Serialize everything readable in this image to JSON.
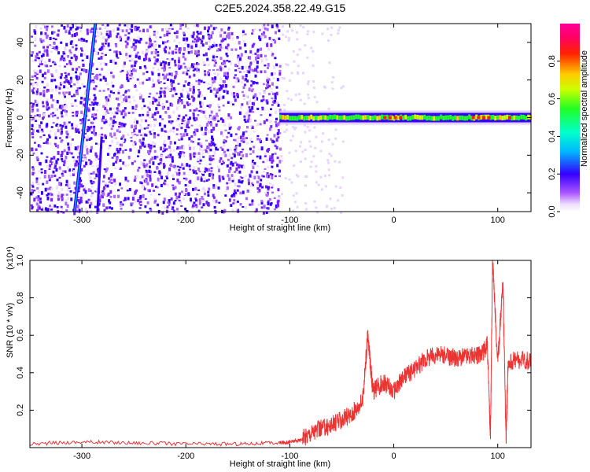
{
  "figure": {
    "title": "C2E5.2024.358.22.49.G15"
  },
  "chart_data": [
    {
      "type": "heatmap",
      "title": "C2E5.2024.358.22.49.G15",
      "xlabel": "Height of straight line (km)",
      "ylabel": "Frequency (Hz)",
      "xlim": [
        -350,
        132
      ],
      "ylim": [
        -50,
        50
      ],
      "x_ticks": [
        "-300",
        "-200",
        "-100",
        "0",
        "100"
      ],
      "x_tick_values": [
        -300,
        -200,
        -100,
        0,
        100
      ],
      "y_ticks": [
        "-40",
        "-20",
        "0",
        "20",
        "40"
      ],
      "y_tick_values": [
        -40,
        -20,
        0,
        20,
        40
      ],
      "colorbar": {
        "label": "Normalized spectral amplitude",
        "range": [
          0,
          1
        ],
        "ticks": [
          "0.0",
          "0.2",
          "0.4",
          "0.6",
          "0.8"
        ],
        "tick_values": [
          0.0,
          0.2,
          0.4,
          0.6,
          0.8
        ],
        "colormap": "rainbow (white-purple-blue-cyan-green-yellow-red-magenta)"
      },
      "features": {
        "broadband_noise_region_x": [
          -350,
          -110
        ],
        "diagonal_streak_1": {
          "x": [
            -307,
            -287
          ],
          "y": [
            -50,
            50
          ]
        },
        "diagonal_streak_2": {
          "x": [
            -285,
            -281
          ],
          "y": [
            -50,
            -10
          ]
        },
        "carrier_line": {
          "x_start": -110,
          "x_end": 132,
          "center_frequency": 0,
          "peak_amplitude": 1.0
        }
      }
    },
    {
      "type": "line",
      "xlabel": "Height of straight line (km)",
      "ylabel": "SNR (10 * v/v)",
      "y_multiplier": "(x10⁴)",
      "xlim": [
        -350,
        132
      ],
      "ylim": [
        0,
        1.0
      ],
      "x_ticks": [
        "-300",
        "-200",
        "-100",
        "0",
        "100"
      ],
      "x_tick_values": [
        -300,
        -200,
        -100,
        0,
        100
      ],
      "y_ticks": [
        "0.2",
        "0.4",
        "0.6",
        "0.8",
        "1.0"
      ],
      "y_tick_values": [
        0.2,
        0.4,
        0.6,
        0.8,
        1.0
      ],
      "line_color": "#ee3333",
      "series": [
        {
          "x": [
            -350,
            -300,
            -250,
            -200,
            -150,
            -110,
            -100,
            -90,
            -80,
            -70,
            -60,
            -50,
            -40,
            -30,
            -25,
            -20,
            -10,
            0,
            10,
            20,
            30,
            40,
            50,
            60,
            70,
            80,
            85,
            90,
            93,
            95,
            100,
            105,
            108,
            110,
            120,
            132
          ],
          "y": [
            0.02,
            0.03,
            0.025,
            0.02,
            0.02,
            0.025,
            0.03,
            0.04,
            0.08,
            0.1,
            0.12,
            0.15,
            0.18,
            0.25,
            0.6,
            0.3,
            0.35,
            0.3,
            0.38,
            0.42,
            0.47,
            0.5,
            0.49,
            0.48,
            0.49,
            0.49,
            0.5,
            0.55,
            0.05,
            1.0,
            0.45,
            0.9,
            0.03,
            0.46,
            0.47,
            0.46
          ]
        }
      ]
    }
  ]
}
